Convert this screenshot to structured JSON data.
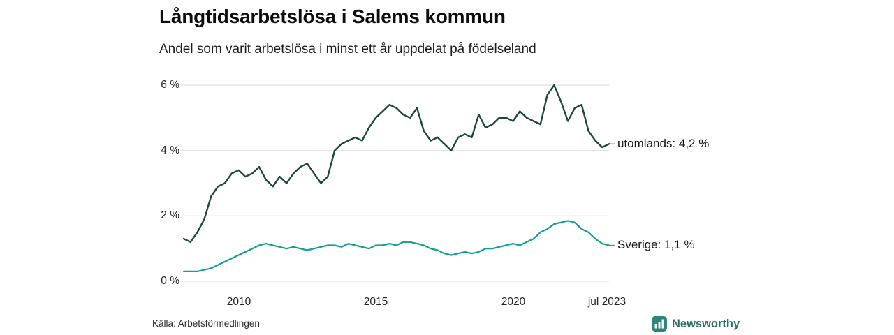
{
  "title": "Långtidsarbetslösa i Salems kommun",
  "subtitle": "Andel som varit arbetslösa i minst ett år uppdelat på födelseland",
  "source": "Källa: Arbetsförmedlingen",
  "brand": {
    "name": "Newsworthy",
    "color": "#2b7265",
    "icon": "bar-chart-icon"
  },
  "colors": {
    "utomlands_line": "#1c473f",
    "sverige_line": "#12a18d",
    "grid": "#d9d9d9",
    "tick_dash": "#8a8a8a",
    "text": "#141414"
  },
  "chart_data": {
    "type": "line",
    "x_start": 2008.0,
    "x_step": 0.25,
    "x_end_label": "jul 2023",
    "ylim": [
      0,
      6.4
    ],
    "grid": "horizontal",
    "y_ticks": [
      {
        "value": 0,
        "label": "0 %"
      },
      {
        "value": 2,
        "label": "2 %"
      },
      {
        "value": 4,
        "label": "4 %"
      },
      {
        "value": 6,
        "label": "6 %"
      }
    ],
    "x_ticks": [
      {
        "value": 2010,
        "label": "2010"
      },
      {
        "value": 2015,
        "label": "2015"
      },
      {
        "value": 2020,
        "label": "2020"
      },
      {
        "value": 2023.5,
        "label": "jul 2023"
      }
    ],
    "series": [
      {
        "name": "utomlands",
        "label": "utomlands: 4,2 %",
        "last_value": 4.2,
        "color": "#1c473f",
        "values": [
          1.3,
          1.2,
          1.5,
          1.9,
          2.6,
          2.9,
          3.0,
          3.3,
          3.4,
          3.2,
          3.3,
          3.5,
          3.1,
          2.9,
          3.2,
          3.0,
          3.3,
          3.5,
          3.6,
          3.3,
          3.0,
          3.2,
          4.0,
          4.2,
          4.3,
          4.4,
          4.3,
          4.7,
          5.0,
          5.2,
          5.4,
          5.3,
          5.1,
          5.0,
          5.3,
          4.6,
          4.3,
          4.4,
          4.2,
          4.0,
          4.4,
          4.5,
          4.4,
          5.1,
          4.7,
          4.8,
          5.0,
          5.0,
          4.9,
          5.2,
          5.0,
          4.9,
          4.8,
          5.7,
          6.0,
          5.5,
          4.9,
          5.3,
          5.4,
          4.6,
          4.3,
          4.1,
          4.2
        ]
      },
      {
        "name": "Sverige",
        "label": "Sverige: 1,1 %",
        "last_value": 1.1,
        "color": "#12a18d",
        "values": [
          0.3,
          0.3,
          0.3,
          0.35,
          0.4,
          0.5,
          0.6,
          0.7,
          0.8,
          0.9,
          1.0,
          1.1,
          1.15,
          1.1,
          1.05,
          1.0,
          1.05,
          1.0,
          0.95,
          1.0,
          1.05,
          1.1,
          1.1,
          1.05,
          1.15,
          1.1,
          1.05,
          1.0,
          1.1,
          1.1,
          1.15,
          1.1,
          1.2,
          1.2,
          1.15,
          1.1,
          1.0,
          0.95,
          0.85,
          0.8,
          0.85,
          0.9,
          0.85,
          0.9,
          1.0,
          1.0,
          1.05,
          1.1,
          1.15,
          1.1,
          1.2,
          1.3,
          1.5,
          1.6,
          1.75,
          1.8,
          1.85,
          1.8,
          1.6,
          1.5,
          1.3,
          1.15,
          1.1
        ]
      }
    ]
  }
}
